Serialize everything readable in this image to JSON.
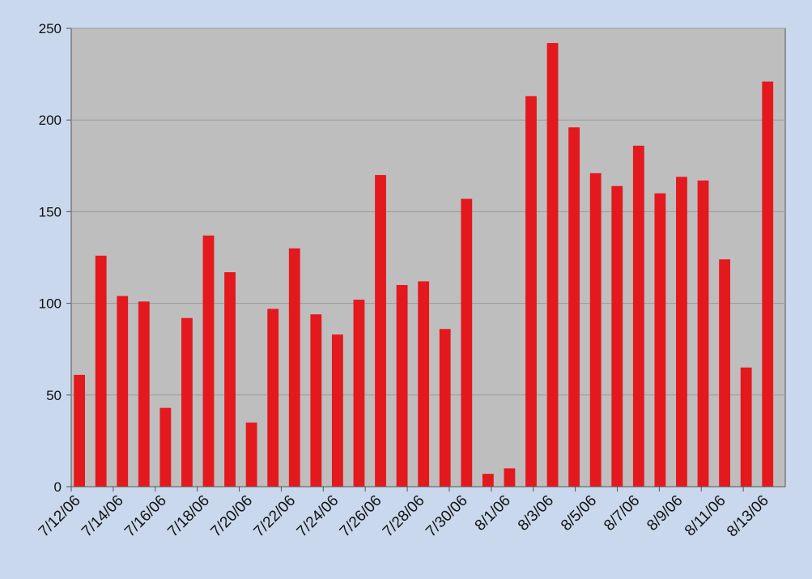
{
  "chart_data": {
    "type": "bar",
    "categories": [
      "7/12/06",
      "7/13/06",
      "7/14/06",
      "7/15/06",
      "7/16/06",
      "7/17/06",
      "7/18/06",
      "7/19/06",
      "7/20/06",
      "7/21/06",
      "7/22/06",
      "7/23/06",
      "7/24/06",
      "7/25/06",
      "7/26/06",
      "7/27/06",
      "7/28/06",
      "7/29/06",
      "7/30/06",
      "7/31/06",
      "8/1/06",
      "8/2/06",
      "8/3/06",
      "8/4/06",
      "8/5/06",
      "8/6/06",
      "8/7/06",
      "8/8/06",
      "8/9/06",
      "8/10/06",
      "8/11/06",
      "8/12/06",
      "8/13/06"
    ],
    "x_tick_labels": [
      "7/12/06",
      "7/14/06",
      "7/16/06",
      "7/18/06",
      "7/20/06",
      "7/22/06",
      "7/24/06",
      "7/26/06",
      "7/28/06",
      "7/30/06",
      "8/1/06",
      "8/3/06",
      "8/5/06",
      "8/7/06",
      "8/9/06",
      "8/11/06",
      "8/13/06"
    ],
    "values": [
      61,
      126,
      104,
      101,
      43,
      92,
      137,
      117,
      35,
      97,
      130,
      94,
      83,
      102,
      170,
      110,
      112,
      86,
      157,
      7,
      10,
      213,
      242,
      196,
      171,
      164,
      186,
      160,
      169,
      167,
      124,
      65,
      221
    ],
    "title": "",
    "xlabel": "",
    "ylabel": "",
    "ylim": [
      0,
      250
    ],
    "y_ticks": [
      0,
      50,
      100,
      150,
      200,
      250
    ],
    "grid": true,
    "legend": "none",
    "colors": {
      "bar": "#e3191e",
      "plot_background": "#bebebe",
      "page_background": "#c9d8ec",
      "gridline": "#9a9a9a",
      "axis": "#555555"
    }
  }
}
